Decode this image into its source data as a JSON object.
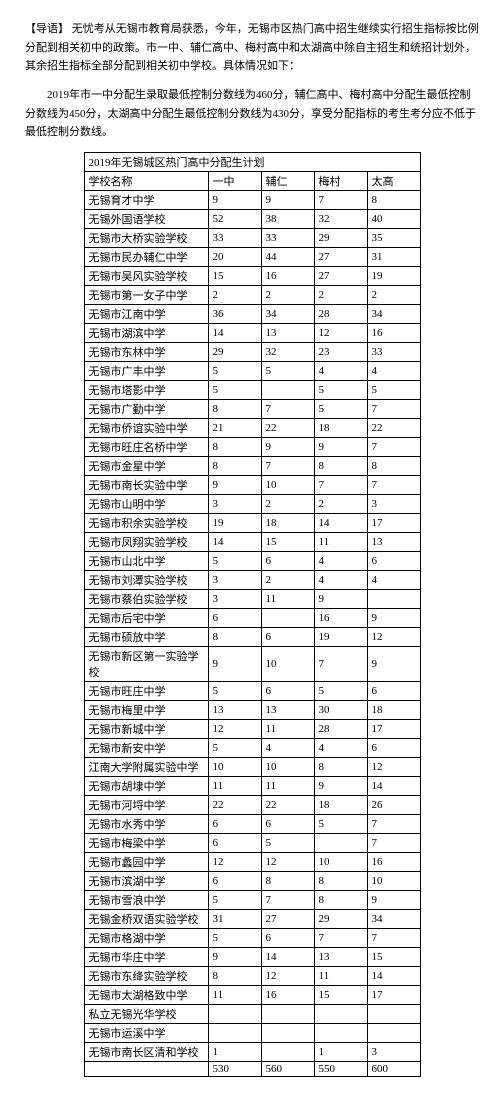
{
  "intro": "【导语】 无忧考从无锡市教育局获悉，今年，无锡市区热门高中招生继续实行招生指标按比例分配到相关初中的政策。市一中、辅仁高中、梅村高中和太湖高中除自主招生和统招计划外，其余招生指标全部分配到相关初中学校。具体情况如下：",
  "scoreline": "2019年市一中分配生录取最低控制分数线为460分，辅仁高中、梅村高中分配生最低控制分数线为450分，太湖高中分配生最低控制分数线为430分，享受分配指标的考生考分应不低于最低控制分数线。",
  "table": {
    "title": "2019年无锡城区热门高中分配生计划",
    "header": [
      "学校名称",
      "一中",
      "辅仁",
      "梅村",
      "太高"
    ],
    "rows": [
      [
        "无锡育才中学",
        "9",
        "9",
        "7",
        "8"
      ],
      [
        "无锡外国语学校",
        "52",
        "38",
        "32",
        "40"
      ],
      [
        "无锡市大桥实验学校",
        "33",
        "33",
        "29",
        "35"
      ],
      [
        "无锡市民办辅仁中学",
        "20",
        "44",
        "27",
        "31"
      ],
      [
        "无锡市吴风实验学校",
        "15",
        "16",
        "27",
        "19"
      ],
      [
        "无锡市第一女子中学",
        "2",
        "2",
        "2",
        "2"
      ],
      [
        "无锡市江南中学",
        "36",
        "34",
        "28",
        "34"
      ],
      [
        "无锡市湖滨中学",
        "14",
        "13",
        "12",
        "16"
      ],
      [
        "无锡市东林中学",
        "29",
        "32",
        "23",
        "33"
      ],
      [
        "无锡市广丰中学",
        "5",
        "5",
        "4",
        "4"
      ],
      [
        "无锡市塔影中学",
        "5",
        "",
        "5",
        "5"
      ],
      [
        "无锡市广勤中学",
        "8",
        "7",
        "5",
        "7"
      ],
      [
        "无锡市侨谊实验中学",
        "21",
        "22",
        "18",
        "22"
      ],
      [
        "无锡市旺庄名桥中学",
        "8",
        "9",
        "9",
        "7"
      ],
      [
        "无锡市金星中学",
        "8",
        "7",
        "8",
        "8"
      ],
      [
        "无锡市南长实验中学",
        "9",
        "10",
        "7",
        "7"
      ],
      [
        "无锡市山明中学",
        "3",
        "2",
        "2",
        "3"
      ],
      [
        "无锡市积余实验学校",
        "19",
        "18",
        "14",
        "17"
      ],
      [
        "无锡市凤翔实验学校",
        "14",
        "15",
        "11",
        "13"
      ],
      [
        "无锡市山北中学",
        "5",
        "6",
        "4",
        "6"
      ],
      [
        "无锡市刘潭实验学校",
        "3",
        "2",
        "4",
        "4"
      ],
      [
        "无锡市蔡伯实验学校",
        "3",
        "11",
        "9",
        ""
      ],
      [
        "无锡市后宅中学",
        "6",
        "",
        "16",
        "9"
      ],
      [
        "无锡市硕放中学",
        "8",
        "6",
        "19",
        "12"
      ],
      [
        "无锡市新区第一实验学校",
        "9",
        "10",
        "7",
        "9"
      ],
      [
        "无锡市旺庄中学",
        "5",
        "6",
        "5",
        "6"
      ],
      [
        "无锡市梅里中学",
        "13",
        "13",
        "30",
        "18"
      ],
      [
        "无锡市新城中学",
        "12",
        "11",
        "28",
        "17"
      ],
      [
        "无锡市新安中学",
        "5",
        "4",
        "4",
        "6"
      ],
      [
        "江南大学附属实验中学",
        "10",
        "10",
        "8",
        "12"
      ],
      [
        "无锡市胡埭中学",
        "11",
        "11",
        "9",
        "14"
      ],
      [
        "无锡市河埒中学",
        "22",
        "22",
        "18",
        "26"
      ],
      [
        "无锡市水秀中学",
        "6",
        "6",
        "5",
        "7"
      ],
      [
        "无锡市梅梁中学",
        "6",
        "5",
        "",
        "7"
      ],
      [
        "无锡市蠡园中学",
        "12",
        "12",
        "10",
        "16"
      ],
      [
        "无锡市滨湖中学",
        "6",
        "8",
        "8",
        "10"
      ],
      [
        "无锡市雪浪中学",
        "5",
        "7",
        "8",
        "9"
      ],
      [
        "无锡金桥双语实验学校",
        "31",
        "27",
        "29",
        "34"
      ],
      [
        "无锡市格湖中学",
        "5",
        "6",
        "7",
        "7"
      ],
      [
        "无锡市华庄中学",
        "9",
        "14",
        "13",
        "15"
      ],
      [
        "无锡市东绛实验学校",
        "8",
        "12",
        "11",
        "14"
      ],
      [
        "无锡市太湖格致中学",
        "11",
        "16",
        "15",
        "17"
      ],
      [
        "私立无锡光华学校",
        "",
        "",
        "",
        ""
      ],
      [
        "无锡市运溪中学",
        "",
        "",
        "",
        ""
      ],
      [
        "无锡市南长区清和学校",
        "1",
        "",
        "1",
        "3"
      ],
      [
        "",
        "530",
        "560",
        "550",
        "600"
      ]
    ]
  }
}
